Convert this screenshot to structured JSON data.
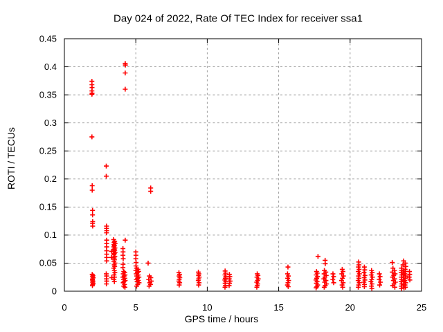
{
  "chart_data": {
    "type": "scatter",
    "title": "Day 024 of 2022, Rate Of TEC Index for receiver ssa1",
    "xlabel": "GPS time / hours",
    "ylabel": "ROTI / TECUs",
    "xlim": [
      0,
      25
    ],
    "ylim": [
      0,
      0.45
    ],
    "xticks": [
      0,
      5,
      10,
      15,
      20,
      25
    ],
    "xtick_labels": [
      "0",
      "5",
      "10",
      "15",
      "20",
      "25"
    ],
    "yticks": [
      0,
      0.05,
      0.1,
      0.15,
      0.2,
      0.25,
      0.3,
      0.35,
      0.4,
      0.45
    ],
    "ytick_labels": [
      "0",
      "0.05",
      "0.1",
      "0.15",
      "0.2",
      "0.25",
      "0.3",
      "0.35",
      "0.4",
      "0.45"
    ],
    "grid": true,
    "legend": false,
    "marker": "plus",
    "marker_color": "#ff0000",
    "grid_color": "#9c9c9c",
    "axis_color": "#000000",
    "background": "#ffffff",
    "series": [
      {
        "name": "ROTI",
        "points": [
          [
            1.93,
            0.374
          ],
          [
            1.93,
            0.368
          ],
          [
            1.94,
            0.363
          ],
          [
            1.93,
            0.357
          ],
          [
            1.94,
            0.353
          ],
          [
            1.93,
            0.351
          ],
          [
            1.93,
            0.275
          ],
          [
            1.95,
            0.188
          ],
          [
            1.95,
            0.18
          ],
          [
            1.97,
            0.144
          ],
          [
            1.97,
            0.136
          ],
          [
            1.98,
            0.124
          ],
          [
            1.97,
            0.121
          ],
          [
            1.98,
            0.116
          ],
          [
            1.95,
            0.03
          ],
          [
            2.0,
            0.028
          ],
          [
            1.97,
            0.026
          ],
          [
            2.02,
            0.024
          ],
          [
            1.98,
            0.022
          ],
          [
            1.96,
            0.02
          ],
          [
            2.0,
            0.018
          ],
          [
            1.97,
            0.016
          ],
          [
            2.01,
            0.014
          ],
          [
            1.98,
            0.012
          ],
          [
            1.96,
            0.01
          ],
          [
            2.93,
            0.223
          ],
          [
            2.93,
            0.205
          ],
          [
            2.95,
            0.116
          ],
          [
            2.95,
            0.112
          ],
          [
            2.96,
            0.108
          ],
          [
            2.95,
            0.104
          ],
          [
            2.96,
            0.091
          ],
          [
            2.96,
            0.085
          ],
          [
            2.96,
            0.079
          ],
          [
            2.96,
            0.072
          ],
          [
            2.96,
            0.066
          ],
          [
            2.96,
            0.06
          ],
          [
            2.96,
            0.054
          ],
          [
            2.93,
            0.031
          ],
          [
            2.95,
            0.027
          ],
          [
            2.94,
            0.022
          ],
          [
            2.96,
            0.018
          ],
          [
            2.94,
            0.013
          ],
          [
            3.31,
            0.071
          ],
          [
            3.3,
            0.06
          ],
          [
            3.32,
            0.024
          ],
          [
            3.45,
            0.092
          ],
          [
            3.52,
            0.089
          ],
          [
            3.48,
            0.087
          ],
          [
            3.55,
            0.085
          ],
          [
            3.47,
            0.083
          ],
          [
            3.51,
            0.081
          ],
          [
            3.46,
            0.079
          ],
          [
            3.54,
            0.077
          ],
          [
            3.49,
            0.075
          ],
          [
            3.52,
            0.073
          ],
          [
            3.47,
            0.071
          ],
          [
            3.55,
            0.069
          ],
          [
            3.5,
            0.067
          ],
          [
            3.46,
            0.065
          ],
          [
            3.53,
            0.062
          ],
          [
            3.48,
            0.059
          ],
          [
            3.51,
            0.056
          ],
          [
            3.47,
            0.053
          ],
          [
            3.54,
            0.05
          ],
          [
            3.49,
            0.047
          ],
          [
            3.52,
            0.044
          ],
          [
            3.46,
            0.041
          ],
          [
            3.5,
            0.037
          ],
          [
            3.53,
            0.033
          ],
          [
            3.48,
            0.029
          ],
          [
            3.51,
            0.025
          ],
          [
            3.47,
            0.021
          ],
          [
            3.5,
            0.017
          ],
          [
            4.26,
            0.406
          ],
          [
            4.27,
            0.403
          ],
          [
            4.26,
            0.389
          ],
          [
            4.26,
            0.36
          ],
          [
            4.26,
            0.091
          ],
          [
            4.1,
            0.076
          ],
          [
            4.11,
            0.07
          ],
          [
            4.1,
            0.064
          ],
          [
            4.12,
            0.058
          ],
          [
            4.11,
            0.048
          ],
          [
            4.1,
            0.042
          ],
          [
            4.15,
            0.035
          ],
          [
            4.22,
            0.033
          ],
          [
            4.12,
            0.031
          ],
          [
            4.25,
            0.029
          ],
          [
            4.18,
            0.027
          ],
          [
            4.1,
            0.025
          ],
          [
            4.23,
            0.023
          ],
          [
            4.14,
            0.021
          ],
          [
            4.26,
            0.019
          ],
          [
            4.17,
            0.017
          ],
          [
            4.12,
            0.015
          ],
          [
            4.21,
            0.012
          ],
          [
            4.15,
            0.009
          ],
          [
            4.24,
            0.007
          ],
          [
            5.0,
            0.07
          ],
          [
            5.01,
            0.064
          ],
          [
            5.0,
            0.058
          ],
          [
            5.02,
            0.051
          ],
          [
            5.01,
            0.045
          ],
          [
            5.05,
            0.041
          ],
          [
            5.15,
            0.039
          ],
          [
            5.0,
            0.037
          ],
          [
            5.2,
            0.035
          ],
          [
            5.1,
            0.033
          ],
          [
            5.03,
            0.031
          ],
          [
            5.17,
            0.029
          ],
          [
            5.07,
            0.027
          ],
          [
            5.22,
            0.025
          ],
          [
            5.12,
            0.023
          ],
          [
            5.04,
            0.021
          ],
          [
            5.18,
            0.019
          ],
          [
            5.09,
            0.017
          ],
          [
            5.23,
            0.015
          ],
          [
            5.13,
            0.012
          ],
          [
            5.06,
            0.009
          ],
          [
            6.04,
            0.184
          ],
          [
            6.04,
            0.178
          ],
          [
            5.86,
            0.05
          ],
          [
            5.95,
            0.027
          ],
          [
            6.05,
            0.024
          ],
          [
            5.9,
            0.021
          ],
          [
            6.08,
            0.018
          ],
          [
            5.98,
            0.015
          ],
          [
            6.03,
            0.012
          ],
          [
            5.93,
            0.009
          ],
          [
            8.02,
            0.033
          ],
          [
            8.06,
            0.03
          ],
          [
            8.03,
            0.027
          ],
          [
            8.08,
            0.024
          ],
          [
            8.04,
            0.021
          ],
          [
            8.02,
            0.018
          ],
          [
            8.07,
            0.015
          ],
          [
            8.04,
            0.011
          ],
          [
            9.38,
            0.034
          ],
          [
            9.42,
            0.031
          ],
          [
            9.39,
            0.028
          ],
          [
            9.44,
            0.025
          ],
          [
            9.4,
            0.022
          ],
          [
            9.37,
            0.019
          ],
          [
            9.43,
            0.015
          ],
          [
            9.4,
            0.011
          ],
          [
            11.25,
            0.036
          ],
          [
            11.28,
            0.032
          ],
          [
            11.24,
            0.029
          ],
          [
            11.3,
            0.026
          ],
          [
            11.26,
            0.023
          ],
          [
            11.23,
            0.02
          ],
          [
            11.29,
            0.017
          ],
          [
            11.25,
            0.014
          ],
          [
            11.27,
            0.01
          ],
          [
            11.24,
            0.007
          ],
          [
            11.55,
            0.03
          ],
          [
            11.58,
            0.026
          ],
          [
            11.54,
            0.022
          ],
          [
            11.6,
            0.018
          ],
          [
            11.56,
            0.014
          ],
          [
            11.53,
            0.01
          ],
          [
            13.5,
            0.031
          ],
          [
            13.55,
            0.028
          ],
          [
            13.48,
            0.025
          ],
          [
            13.57,
            0.022
          ],
          [
            13.52,
            0.019
          ],
          [
            13.46,
            0.016
          ],
          [
            13.54,
            0.013
          ],
          [
            13.5,
            0.01
          ],
          [
            13.47,
            0.007
          ],
          [
            15.65,
            0.043
          ],
          [
            15.62,
            0.031
          ],
          [
            15.68,
            0.027
          ],
          [
            15.63,
            0.023
          ],
          [
            15.7,
            0.019
          ],
          [
            15.65,
            0.015
          ],
          [
            15.61,
            0.011
          ],
          [
            15.67,
            0.008
          ],
          [
            17.75,
            0.062
          ],
          [
            17.65,
            0.035
          ],
          [
            17.7,
            0.032
          ],
          [
            17.63,
            0.029
          ],
          [
            17.72,
            0.026
          ],
          [
            17.66,
            0.023
          ],
          [
            17.61,
            0.02
          ],
          [
            17.69,
            0.017
          ],
          [
            17.64,
            0.014
          ],
          [
            17.73,
            0.011
          ],
          [
            17.67,
            0.008
          ],
          [
            17.62,
            0.006
          ],
          [
            18.25,
            0.055
          ],
          [
            18.26,
            0.049
          ],
          [
            18.2,
            0.037
          ],
          [
            18.3,
            0.034
          ],
          [
            18.18,
            0.031
          ],
          [
            18.33,
            0.028
          ],
          [
            18.23,
            0.025
          ],
          [
            18.16,
            0.022
          ],
          [
            18.31,
            0.019
          ],
          [
            18.21,
            0.016
          ],
          [
            18.35,
            0.013
          ],
          [
            18.26,
            0.01
          ],
          [
            18.19,
            0.007
          ],
          [
            18.8,
            0.031
          ],
          [
            18.84,
            0.026
          ],
          [
            18.79,
            0.021
          ],
          [
            18.85,
            0.015
          ],
          [
            19.45,
            0.039
          ],
          [
            19.5,
            0.035
          ],
          [
            19.42,
            0.031
          ],
          [
            19.53,
            0.027
          ],
          [
            19.46,
            0.023
          ],
          [
            19.4,
            0.019
          ],
          [
            19.51,
            0.015
          ],
          [
            19.44,
            0.011
          ],
          [
            19.48,
            0.007
          ],
          [
            20.6,
            0.052
          ],
          [
            20.62,
            0.047
          ],
          [
            20.58,
            0.043
          ],
          [
            20.63,
            0.039
          ],
          [
            20.57,
            0.035
          ],
          [
            20.65,
            0.031
          ],
          [
            20.59,
            0.027
          ],
          [
            20.62,
            0.023
          ],
          [
            20.56,
            0.019
          ],
          [
            20.64,
            0.015
          ],
          [
            20.6,
            0.011
          ],
          [
            20.57,
            0.007
          ],
          [
            21.0,
            0.043
          ],
          [
            21.02,
            0.038
          ],
          [
            20.98,
            0.033
          ],
          [
            21.04,
            0.028
          ],
          [
            20.99,
            0.024
          ],
          [
            21.03,
            0.02
          ],
          [
            20.97,
            0.016
          ],
          [
            21.01,
            0.012
          ],
          [
            21.0,
            0.008
          ],
          [
            21.5,
            0.037
          ],
          [
            21.54,
            0.033
          ],
          [
            21.48,
            0.029
          ],
          [
            21.56,
            0.025
          ],
          [
            21.51,
            0.021
          ],
          [
            21.46,
            0.017
          ],
          [
            21.53,
            0.013
          ],
          [
            21.49,
            0.009
          ],
          [
            21.52,
            0.005
          ],
          [
            22.05,
            0.031
          ],
          [
            22.1,
            0.026
          ],
          [
            22.04,
            0.021
          ],
          [
            22.12,
            0.016
          ],
          [
            22.07,
            0.011
          ],
          [
            22.95,
            0.051
          ],
          [
            23.0,
            0.041
          ],
          [
            23.1,
            0.037
          ],
          [
            22.95,
            0.034
          ],
          [
            23.15,
            0.031
          ],
          [
            23.05,
            0.028
          ],
          [
            22.97,
            0.025
          ],
          [
            23.12,
            0.022
          ],
          [
            23.03,
            0.019
          ],
          [
            23.17,
            0.016
          ],
          [
            23.07,
            0.013
          ],
          [
            22.98,
            0.01
          ],
          [
            23.13,
            0.007
          ],
          [
            23.75,
            0.054
          ],
          [
            23.85,
            0.05
          ],
          [
            23.7,
            0.047
          ],
          [
            23.9,
            0.044
          ],
          [
            23.6,
            0.041
          ],
          [
            23.62,
            0.037
          ],
          [
            23.58,
            0.033
          ],
          [
            23.63,
            0.029
          ],
          [
            23.59,
            0.025
          ],
          [
            23.61,
            0.021
          ],
          [
            23.57,
            0.017
          ],
          [
            23.62,
            0.013
          ],
          [
            23.58,
            0.009
          ],
          [
            23.6,
            0.005
          ],
          [
            23.85,
            0.039
          ],
          [
            23.88,
            0.035
          ],
          [
            23.83,
            0.031
          ],
          [
            23.9,
            0.027
          ],
          [
            23.86,
            0.023
          ],
          [
            23.82,
            0.019
          ],
          [
            23.89,
            0.015
          ],
          [
            23.84,
            0.011
          ],
          [
            23.87,
            0.007
          ],
          [
            23.72,
            0.036
          ],
          [
            23.76,
            0.03
          ],
          [
            23.73,
            0.024
          ],
          [
            23.78,
            0.018
          ],
          [
            23.74,
            0.012
          ],
          [
            23.77,
            0.006
          ],
          [
            24.15,
            0.035
          ],
          [
            24.17,
            0.03
          ],
          [
            24.14,
            0.025
          ],
          [
            24.18,
            0.02
          ]
        ]
      }
    ]
  }
}
